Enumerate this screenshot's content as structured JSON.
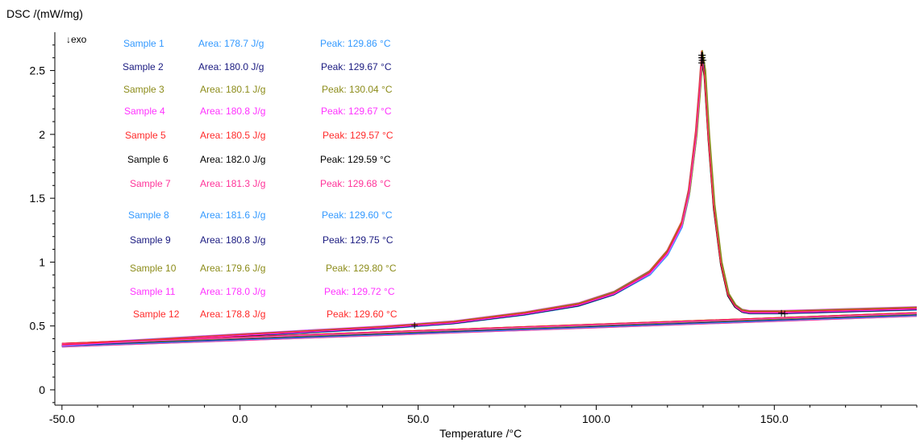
{
  "chart_data": {
    "type": "line",
    "title": "",
    "xlabel": "Temperature /°C",
    "ylabel": "DSC /(mW/mg)",
    "direction_label": "↓exo",
    "xlim": [
      -52,
      190
    ],
    "ylim": [
      -0.12,
      2.8
    ],
    "x_ticks": [
      -50,
      0,
      50,
      100,
      150
    ],
    "x_tick_labels": [
      "-50.0",
      "0.0",
      "50.0",
      "100.0",
      "150.0"
    ],
    "y_ticks": [
      0,
      0.5,
      1,
      1.5,
      2,
      2.5
    ],
    "y_tick_labels": [
      "0",
      "0.5",
      "1",
      "1.5",
      "2",
      "2.5"
    ],
    "grid": false,
    "legend_placement": "top-left",
    "baseline_start": [
      -50,
      0.35
    ],
    "baseline_end": [
      190,
      0.61
    ],
    "peak_curve": {
      "x": [
        -50,
        0,
        40,
        60,
        80,
        95,
        105,
        115,
        120,
        124,
        126,
        128,
        129,
        129.7,
        130.4,
        131.5,
        133,
        135,
        137,
        139,
        141,
        143,
        147,
        152,
        165,
        190
      ],
      "y": [
        0.35,
        0.43,
        0.49,
        0.53,
        0.6,
        0.67,
        0.76,
        0.92,
        1.08,
        1.3,
        1.55,
        2.0,
        2.35,
        2.62,
        2.5,
        2.0,
        1.45,
        1.0,
        0.75,
        0.66,
        0.62,
        0.61,
        0.61,
        0.61,
        0.62,
        0.64
      ]
    },
    "integration_limits": [
      49,
      152
    ],
    "series": [
      {
        "name": "Sample 1",
        "area": "Area: 178.7 J/g",
        "peak": "Peak: 129.86 °C",
        "color": "#3399ff",
        "peak_temp": 129.86
      },
      {
        "name": "Sample 2",
        "area": "Area: 180.0 J/g",
        "peak": "Peak: 129.67 °C",
        "color": "#1a1a80",
        "peak_temp": 129.67
      },
      {
        "name": "Sample 3",
        "area": "Area: 180.1 J/g",
        "peak": "Peak: 130.04 °C",
        "color": "#8c8c1a",
        "peak_temp": 130.04
      },
      {
        "name": "Sample 4",
        "area": "Area: 180.8 J/g",
        "peak": "Peak: 129.67 °C",
        "color": "#ff33ff",
        "peak_temp": 129.67
      },
      {
        "name": "Sample 5",
        "area": "Area: 180.5 J/g",
        "peak": "Peak: 129.57 °C",
        "color": "#ff2a2a",
        "peak_temp": 129.57
      },
      {
        "name": "Sample 6",
        "area": "Area: 182.0 J/g",
        "peak": "Peak: 129.59 °C",
        "color": "#000000",
        "peak_temp": 129.59
      },
      {
        "name": "Sample 7",
        "area": "Area: 181.3 J/g",
        "peak": "Peak: 129.68 °C",
        "color": "#ff3399",
        "peak_temp": 129.68
      },
      {
        "name": "Sample 8",
        "area": "Area: 181.6 J/g",
        "peak": "Peak: 129.60 °C",
        "color": "#3399ff",
        "peak_temp": 129.6
      },
      {
        "name": "Sample 9",
        "area": "Area: 180.8 J/g",
        "peak": "Peak: 129.75 °C",
        "color": "#1a1a80",
        "peak_temp": 129.75
      },
      {
        "name": "Sample 10",
        "area": "Area: 179.6 J/g",
        "peak": "Peak: 129.80 °C",
        "color": "#8c8c1a",
        "peak_temp": 129.8
      },
      {
        "name": "Sample 11",
        "area": "Area: 178.0 J/g",
        "peak": "Peak: 129.72 °C",
        "color": "#ff33ff",
        "peak_temp": 129.72
      },
      {
        "name": "Sample 12",
        "area": "Area: 178.8 J/g",
        "peak": "Peak: 129.60 °C",
        "color": "#ff2a2a",
        "peak_temp": 129.6
      }
    ]
  }
}
